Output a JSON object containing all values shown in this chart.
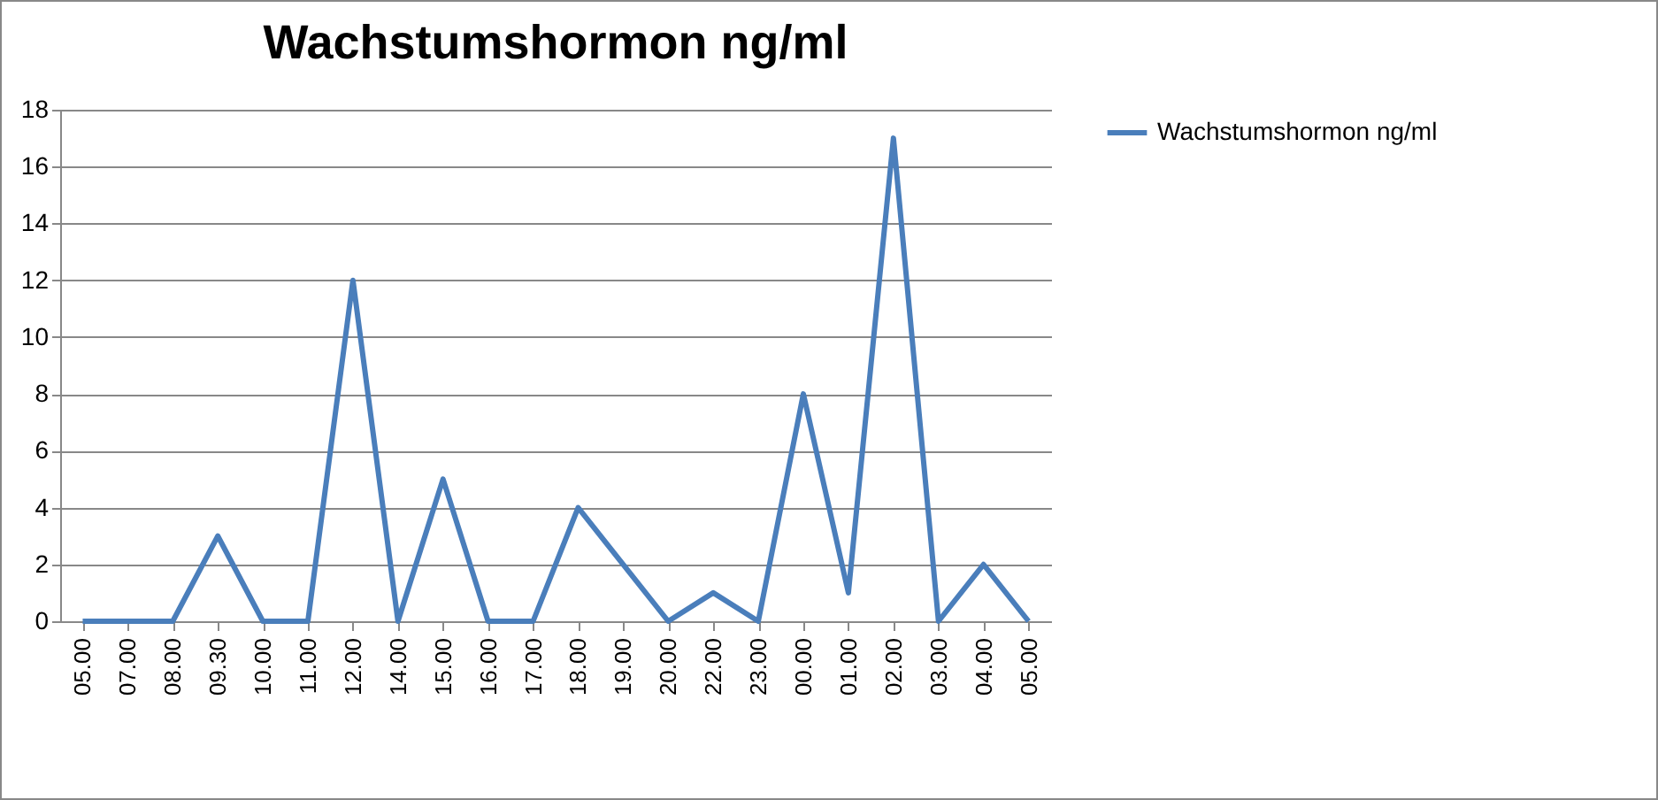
{
  "chart_data": {
    "type": "line",
    "title": "Wachstumshormon ng/ml",
    "categories": [
      "05.00",
      "07.00",
      "08.00",
      "09.30",
      "10.00",
      "11.00",
      "12.00",
      "14.00",
      "15.00",
      "16.00",
      "17.00",
      "18.00",
      "19.00",
      "20.00",
      "22.00",
      "23.00",
      "00.00",
      "01.00",
      "02.00",
      "03.00",
      "04.00",
      "05.00"
    ],
    "series": [
      {
        "name": "Wachstumshormon ng/ml",
        "color": "#4a7ebb",
        "values": [
          0,
          0,
          0,
          3,
          0,
          0,
          12,
          0,
          5,
          0,
          0,
          4,
          2,
          0,
          1,
          0,
          8,
          1,
          17,
          0,
          2,
          0
        ]
      }
    ],
    "ylim": [
      0,
      18
    ],
    "yticks": [
      0,
      2,
      4,
      6,
      8,
      10,
      12,
      14,
      16,
      18
    ],
    "grid": "y",
    "legend": "right",
    "marker": "none",
    "line_style": "solid"
  }
}
